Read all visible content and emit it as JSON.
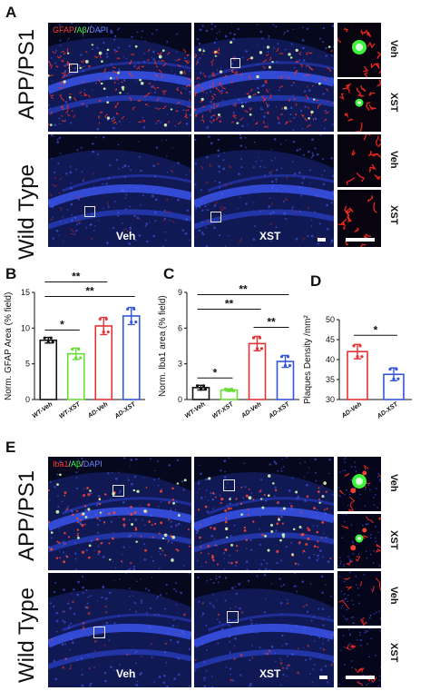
{
  "panels": {
    "A": {
      "letter": "A",
      "stain": {
        "red": "GFAP",
        "sep1": "/",
        "green": "Aβ",
        "sep2": "/",
        "blue": "DAPI"
      },
      "rows": [
        "APP/PS1",
        "Wild Type"
      ],
      "columns": [
        "Veh",
        "XST"
      ],
      "inset_labels": [
        "Veh",
        "XST",
        "Veh",
        "XST"
      ]
    },
    "E": {
      "letter": "E",
      "stain": {
        "red": "Iba1",
        "sep1": "/",
        "green": "Aβ",
        "sep2": "/",
        "blue": "DAPI"
      },
      "rows": [
        "APP/PS1",
        "Wild Type"
      ],
      "columns": [
        "Veh",
        "XST"
      ],
      "inset_labels": [
        "Veh",
        "XST",
        "Veh",
        "XST"
      ]
    }
  },
  "colors": {
    "wt_veh": "#111111",
    "wt_xst": "#66dd33",
    "ad_veh": "#e53333",
    "ad_xst": "#3355dd"
  },
  "chart_data": [
    {
      "panel": "B",
      "type": "bar",
      "ylabel": "Norm. GFAP Area (% field)",
      "categories": [
        "WT-Veh",
        "WT-XST",
        "AD-Veh",
        "AD-XST"
      ],
      "values": [
        8.3,
        6.4,
        10.3,
        11.7
      ],
      "errors": [
        0.4,
        0.8,
        1.2,
        1.2
      ],
      "ylim": [
        0,
        15
      ],
      "yticks": [
        0,
        5,
        10,
        15
      ],
      "grid": false,
      "significance": [
        {
          "from": 0,
          "to": 1,
          "label": "*"
        },
        {
          "from": 0,
          "to": 2,
          "label": "**"
        },
        {
          "from": 0,
          "to": 3,
          "label": "**"
        }
      ]
    },
    {
      "panel": "C",
      "type": "bar",
      "ylabel": "Norm. Iba1 area (% field)",
      "categories": [
        "WT-Veh",
        "WT-XST",
        "AD-Veh",
        "AD-XST"
      ],
      "values": [
        1.0,
        0.8,
        4.7,
        3.2
      ],
      "errors": [
        0.2,
        0.1,
        0.6,
        0.5
      ],
      "ylim": [
        0,
        9
      ],
      "yticks": [
        0,
        3,
        6,
        9
      ],
      "grid": false,
      "significance": [
        {
          "from": 0,
          "to": 1,
          "label": "*"
        },
        {
          "from": 0,
          "to": 2,
          "label": "**"
        },
        {
          "from": 0,
          "to": 3,
          "label": "**"
        },
        {
          "from": 2,
          "to": 3,
          "label": "**"
        }
      ]
    },
    {
      "panel": "D",
      "type": "bar",
      "ylabel": "Plaques Density /mm²",
      "categories": [
        "AD-Veh",
        "AD-XST"
      ],
      "values": [
        42,
        36.3
      ],
      "errors": [
        1.8,
        1.6
      ],
      "ylim": [
        30,
        50
      ],
      "yticks": [
        30,
        35,
        40,
        45,
        50
      ],
      "grid": false,
      "significance": [
        {
          "from": 0,
          "to": 1,
          "label": "*"
        }
      ]
    }
  ]
}
